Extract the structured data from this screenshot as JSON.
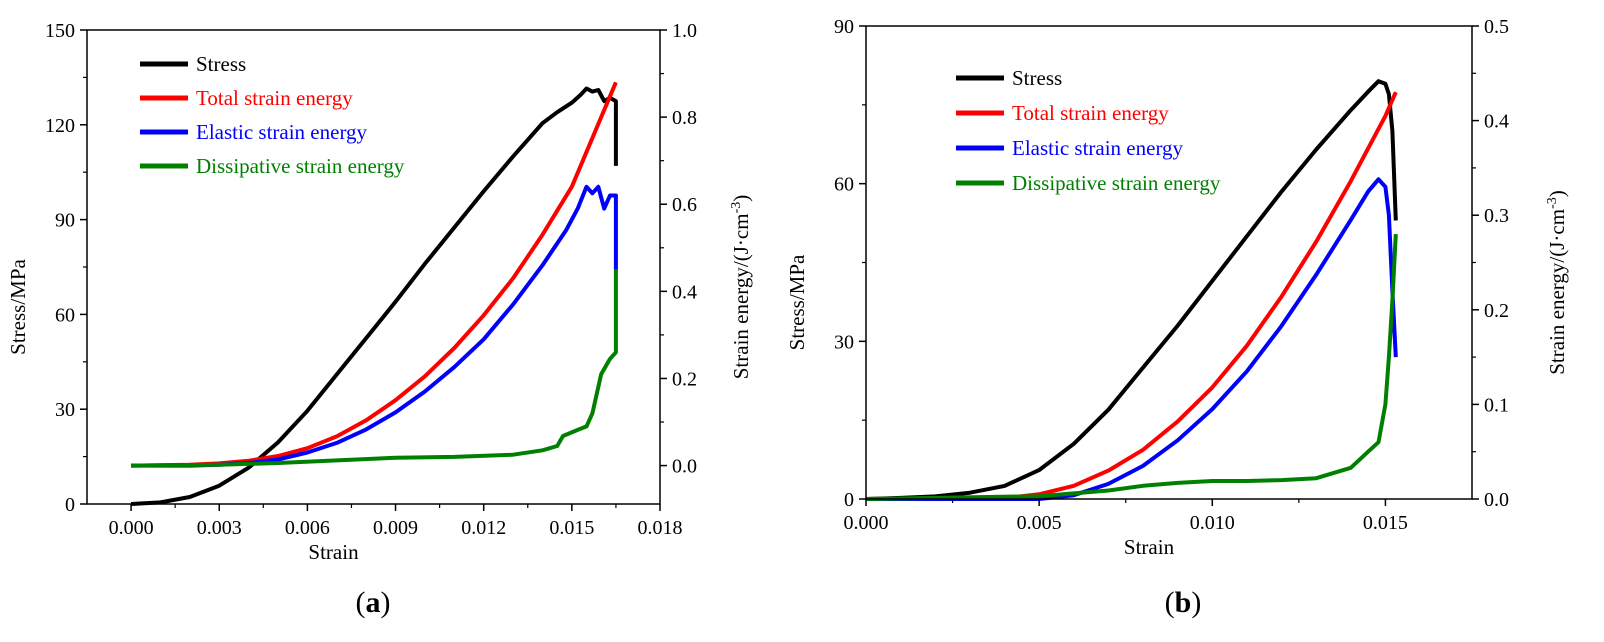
{
  "chart_data": [
    {
      "type": "line",
      "panel_label": "a",
      "xlabel": "Strain",
      "ylabel_left": "Stress/MPa",
      "ylabel_right_prefix": "Strain energy/(J·cm",
      "ylabel_right_exp": "-3",
      "ylabel_right_suffix": ")",
      "xlim": [
        -0.0015,
        0.018
      ],
      "ylim_left": [
        0,
        150
      ],
      "ylim_right": [
        -0.0882,
        1.0
      ],
      "x_ticks": [
        "0.000",
        "0.003",
        "0.006",
        "0.009",
        "0.012",
        "0.015",
        "0.018"
      ],
      "x_tick_values": [
        0,
        0.003,
        0.006,
        0.009,
        0.012,
        0.015,
        0.018
      ],
      "y_left_ticks": [
        "0",
        "30",
        "60",
        "90",
        "120",
        "150"
      ],
      "y_left_tick_values": [
        0,
        30,
        60,
        90,
        120,
        150
      ],
      "y_right_ticks": [
        "0.0",
        "0.2",
        "0.4",
        "0.6",
        "0.8",
        "1.0"
      ],
      "y_right_tick_values": [
        0,
        0.2,
        0.4,
        0.6,
        0.8,
        1.0
      ],
      "legend_position": "top-left",
      "series": [
        {
          "name": "Stress",
          "color": "#000000",
          "axis": "left",
          "x": [
            0,
            0.001,
            0.002,
            0.003,
            0.004,
            0.005,
            0.006,
            0.007,
            0.008,
            0.009,
            0.01,
            0.011,
            0.012,
            0.013,
            0.014,
            0.0145,
            0.015,
            0.0153,
            0.0155,
            0.0157,
            0.0159,
            0.0161,
            0.0163,
            0.0165,
            0.0165
          ],
          "y": [
            0,
            0.5,
            2.2,
            5.8,
            11.5,
            19.5,
            29.5,
            41.0,
            52.5,
            64.0,
            76.0,
            87.5,
            99.0,
            110.0,
            120.5,
            124.0,
            127.0,
            129.5,
            131.5,
            130.5,
            131.0,
            127.5,
            128.5,
            127.5,
            107.0
          ]
        },
        {
          "name": "Total strain energy",
          "color": "#ff0000",
          "axis": "right",
          "x": [
            0,
            0.002,
            0.003,
            0.004,
            0.005,
            0.006,
            0.007,
            0.008,
            0.009,
            0.01,
            0.011,
            0.012,
            0.013,
            0.014,
            0.015,
            0.0165
          ],
          "y": [
            0,
            0.002,
            0.005,
            0.011,
            0.022,
            0.04,
            0.067,
            0.104,
            0.15,
            0.205,
            0.27,
            0.345,
            0.43,
            0.53,
            0.64,
            0.88
          ]
        },
        {
          "name": "Elastic strain energy",
          "color": "#0000ff",
          "axis": "right",
          "x": [
            0,
            0.002,
            0.003,
            0.004,
            0.005,
            0.006,
            0.007,
            0.008,
            0.009,
            0.01,
            0.011,
            0.012,
            0.013,
            0.014,
            0.0148,
            0.0152,
            0.0155,
            0.0157,
            0.0159,
            0.0161,
            0.0163,
            0.0165,
            0.0165
          ],
          "y": [
            0,
            0.0,
            0.002,
            0.006,
            0.014,
            0.03,
            0.052,
            0.083,
            0.122,
            0.17,
            0.226,
            0.29,
            0.37,
            0.46,
            0.54,
            0.59,
            0.64,
            0.625,
            0.64,
            0.59,
            0.62,
            0.62,
            0.45
          ]
        },
        {
          "name": "Dissipative strain energy",
          "color": "#008000",
          "axis": "right",
          "x": [
            0,
            0.003,
            0.005,
            0.007,
            0.009,
            0.011,
            0.013,
            0.014,
            0.0145,
            0.0147,
            0.0152,
            0.0155,
            0.0157,
            0.016,
            0.0163,
            0.0165,
            0.0165
          ],
          "y": [
            0,
            0.002,
            0.006,
            0.012,
            0.018,
            0.02,
            0.025,
            0.035,
            0.045,
            0.068,
            0.082,
            0.09,
            0.12,
            0.21,
            0.245,
            0.26,
            0.45
          ]
        }
      ]
    },
    {
      "type": "line",
      "panel_label": "b",
      "xlabel": "Strain",
      "ylabel_left": "Stress/MPa",
      "ylabel_right_prefix": "Strain energy/(J·cm",
      "ylabel_right_exp": "-3",
      "ylabel_right_suffix": ")",
      "xlim": [
        0,
        0.0175
      ],
      "ylim_left": [
        0,
        90
      ],
      "ylim_right": [
        0,
        0.5
      ],
      "x_ticks": [
        "0.000",
        "0.005",
        "0.010",
        "0.015"
      ],
      "x_tick_values": [
        0,
        0.005,
        0.01,
        0.015
      ],
      "y_left_ticks": [
        "0",
        "30",
        "60",
        "90"
      ],
      "y_left_tick_values": [
        0,
        30,
        60,
        90
      ],
      "y_right_ticks": [
        "0.0",
        "0.1",
        "0.2",
        "0.3",
        "0.4",
        "0.5"
      ],
      "y_right_tick_values": [
        0,
        0.1,
        0.2,
        0.3,
        0.4,
        0.5
      ],
      "legend_position": "top-left",
      "series": [
        {
          "name": "Stress",
          "color": "#000000",
          "axis": "left",
          "x": [
            0,
            0.001,
            0.002,
            0.003,
            0.004,
            0.005,
            0.006,
            0.007,
            0.008,
            0.009,
            0.01,
            0.011,
            0.012,
            0.013,
            0.014,
            0.0145,
            0.0148,
            0.015,
            0.0151,
            0.0152,
            0.0153
          ],
          "y": [
            0,
            0.2,
            0.5,
            1.2,
            2.5,
            5.5,
            10.5,
            17.0,
            25.0,
            33.0,
            41.5,
            50.0,
            58.5,
            66.5,
            74.0,
            77.5,
            79.5,
            79.0,
            77.0,
            70.0,
            53.0
          ]
        },
        {
          "name": "Total strain energy",
          "color": "#ff0000",
          "axis": "right",
          "x": [
            0,
            0.004,
            0.005,
            0.006,
            0.007,
            0.008,
            0.009,
            0.01,
            0.011,
            0.012,
            0.013,
            0.014,
            0.015,
            0.0153
          ],
          "y": [
            0,
            0.001,
            0.005,
            0.014,
            0.03,
            0.052,
            0.082,
            0.118,
            0.162,
            0.214,
            0.272,
            0.336,
            0.405,
            0.43
          ]
        },
        {
          "name": "Elastic strain energy",
          "color": "#0000ff",
          "axis": "right",
          "x": [
            0,
            0.005,
            0.006,
            0.007,
            0.008,
            0.009,
            0.01,
            0.011,
            0.012,
            0.013,
            0.014,
            0.0145,
            0.0148,
            0.015,
            0.0151,
            0.0152,
            0.0153
          ],
          "y": [
            0,
            0.0,
            0.004,
            0.016,
            0.035,
            0.062,
            0.095,
            0.135,
            0.183,
            0.237,
            0.295,
            0.325,
            0.338,
            0.33,
            0.3,
            0.22,
            0.15
          ]
        },
        {
          "name": "Dissipative strain energy",
          "color": "#008000",
          "axis": "right",
          "x": [
            0,
            0.005,
            0.007,
            0.008,
            0.009,
            0.01,
            0.011,
            0.012,
            0.013,
            0.014,
            0.0145,
            0.0148,
            0.015,
            0.0151,
            0.0152,
            0.0153
          ],
          "y": [
            0,
            0.003,
            0.009,
            0.014,
            0.017,
            0.019,
            0.019,
            0.02,
            0.022,
            0.033,
            0.05,
            0.06,
            0.1,
            0.15,
            0.21,
            0.28
          ]
        }
      ]
    }
  ]
}
